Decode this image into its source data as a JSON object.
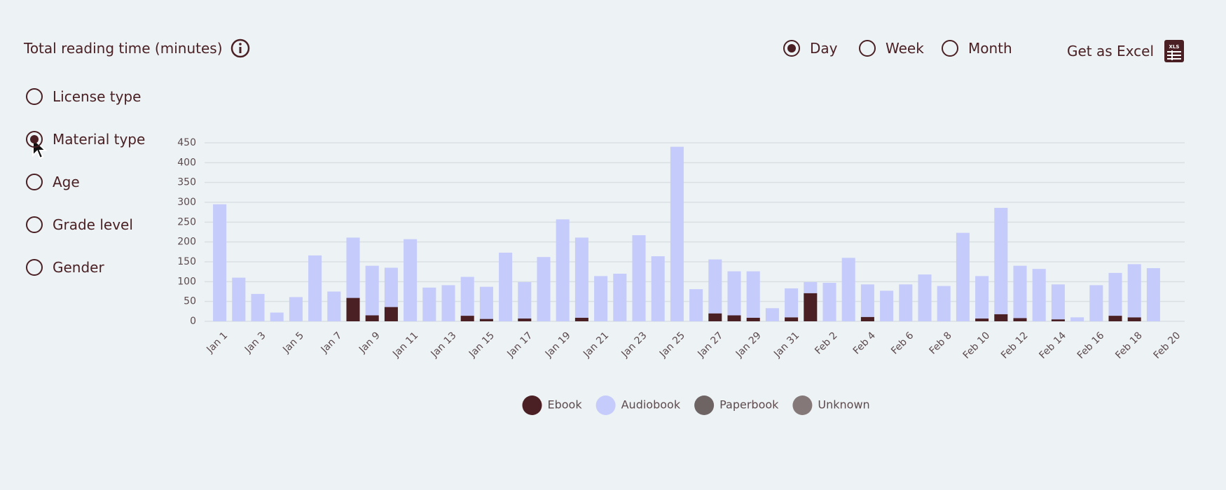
{
  "header": {
    "title": "Total reading time (minutes)",
    "periods": [
      "Day",
      "Week",
      "Month"
    ],
    "selected_period": "Day",
    "export": "Get as Excel",
    "export_icon": "XLS"
  },
  "breakdown": {
    "options": [
      "License type",
      "Material type",
      "Age",
      "Grade level",
      "Gender"
    ],
    "selected": "Material type"
  },
  "chart_data": {
    "type": "stacked_bar",
    "categories": [
      "Jan 1",
      null,
      "Jan 3",
      null,
      "Jan 5",
      null,
      "Jan 7",
      null,
      "Jan 9",
      null,
      "Jan 11",
      null,
      "Jan 13",
      null,
      "Jan 15",
      null,
      "Jan 17",
      null,
      "Jan 19",
      null,
      "Jan 21",
      null,
      "Jan 23",
      null,
      "Jan 25",
      null,
      "Jan 27",
      null,
      "Jan 29",
      null,
      "Jan 31",
      null,
      "Feb 2",
      null,
      "Feb 4",
      null,
      "Feb 6",
      null,
      "Feb 8",
      null,
      "Feb 10",
      null,
      "Feb 12",
      null,
      "Feb 14",
      null,
      "Feb 16",
      null,
      "Feb 18",
      null,
      "Feb 20"
    ],
    "series": [
      {
        "name": "Ebook",
        "color": "#4a2024",
        "values": [
          0,
          0,
          0,
          0,
          0,
          0,
          0,
          59,
          15,
          36,
          0,
          0,
          0,
          14,
          6,
          0,
          7,
          0,
          0,
          9,
          0,
          0,
          0,
          0,
          0,
          0,
          20,
          15,
          9,
          0,
          10,
          71,
          0,
          0,
          11,
          0,
          0,
          0,
          0,
          0,
          7,
          18,
          8,
          0,
          5,
          0,
          0,
          14,
          10,
          0,
          0
        ]
      },
      {
        "name": "Audiobook",
        "color": "#c5cbfb",
        "values": [
          295,
          110,
          69,
          22,
          61,
          166,
          75,
          152,
          125,
          99,
          207,
          85,
          91,
          98,
          81,
          173,
          92,
          162,
          257,
          202,
          114,
          120,
          217,
          164,
          440,
          81,
          136,
          111,
          117,
          33,
          73,
          28,
          97,
          160,
          82,
          77,
          93,
          118,
          89,
          223,
          107,
          268,
          132,
          132,
          88,
          10,
          91,
          108,
          134,
          134,
          0
        ]
      },
      {
        "name": "Paperbook",
        "color": "#6e6464",
        "values": [
          0,
          0,
          0,
          0,
          0,
          0,
          0,
          0,
          0,
          0,
          0,
          0,
          0,
          0,
          0,
          0,
          0,
          0,
          0,
          0,
          0,
          0,
          0,
          0,
          0,
          0,
          0,
          0,
          0,
          0,
          0,
          0,
          0,
          0,
          0,
          0,
          0,
          0,
          0,
          0,
          0,
          0,
          0,
          0,
          0,
          0,
          0,
          0,
          0,
          0,
          0
        ]
      },
      {
        "name": "Unknown",
        "color": "#857878",
        "values": [
          0,
          0,
          0,
          0,
          0,
          0,
          0,
          0,
          0,
          0,
          0,
          0,
          0,
          0,
          0,
          0,
          0,
          0,
          0,
          0,
          0,
          0,
          0,
          0,
          0,
          0,
          0,
          0,
          0,
          0,
          0,
          0,
          0,
          0,
          0,
          0,
          0,
          0,
          0,
          0,
          0,
          0,
          0,
          0,
          0,
          0,
          0,
          0,
          0,
          0,
          0
        ]
      }
    ],
    "ylim": [
      0,
      450
    ],
    "yticks": [
      0,
      50,
      100,
      150,
      200,
      250,
      300,
      350,
      400,
      450
    ],
    "grid": true,
    "legend": "bottom"
  }
}
